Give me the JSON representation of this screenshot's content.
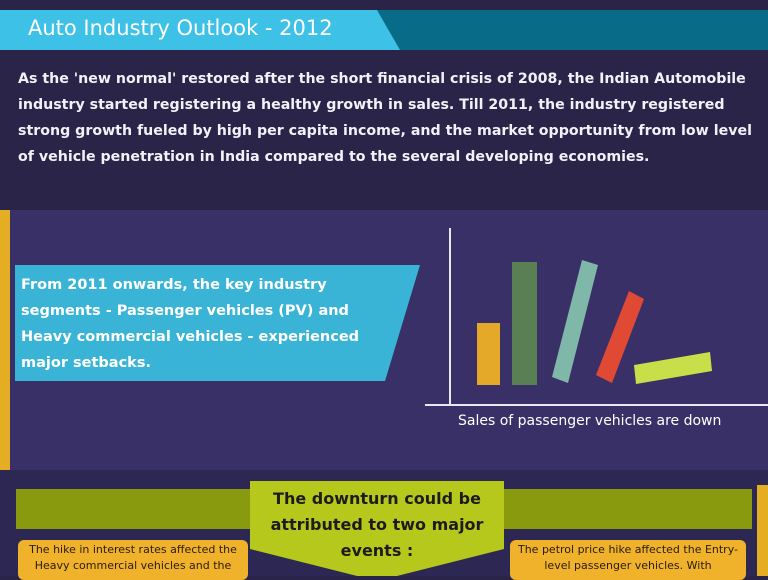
{
  "header": {
    "title": "Auto Industry Outlook - 2012"
  },
  "intro": "As the 'new normal' restored after the short financial crisis of 2008, the Indian Automobile industry started registering a healthy growth in sales. Till 2011, the industry registered strong growth fueled by high per capita income, and the market opportunity from low level of vehicle penetration in India compared to the several developing economies.",
  "callout": "From 2011 onwards, the key industry segments - Passenger vehicles (PV) and Heavy commercial vehicles - experienced major setbacks.",
  "chart": {
    "caption": "Sales of passenger vehicles are down",
    "colors": [
      "#e5a92a",
      "#5a7f55",
      "#7fb8a8",
      "#e04a35",
      "#c9df4a"
    ]
  },
  "downturn": "The downturn could be attributed to two major events :",
  "events": {
    "left": "The hike in interest rates affected the Heavy commercial vehicles and the",
    "right": "The petrol price hike affected the Entry-level passenger vehicles. With"
  }
}
